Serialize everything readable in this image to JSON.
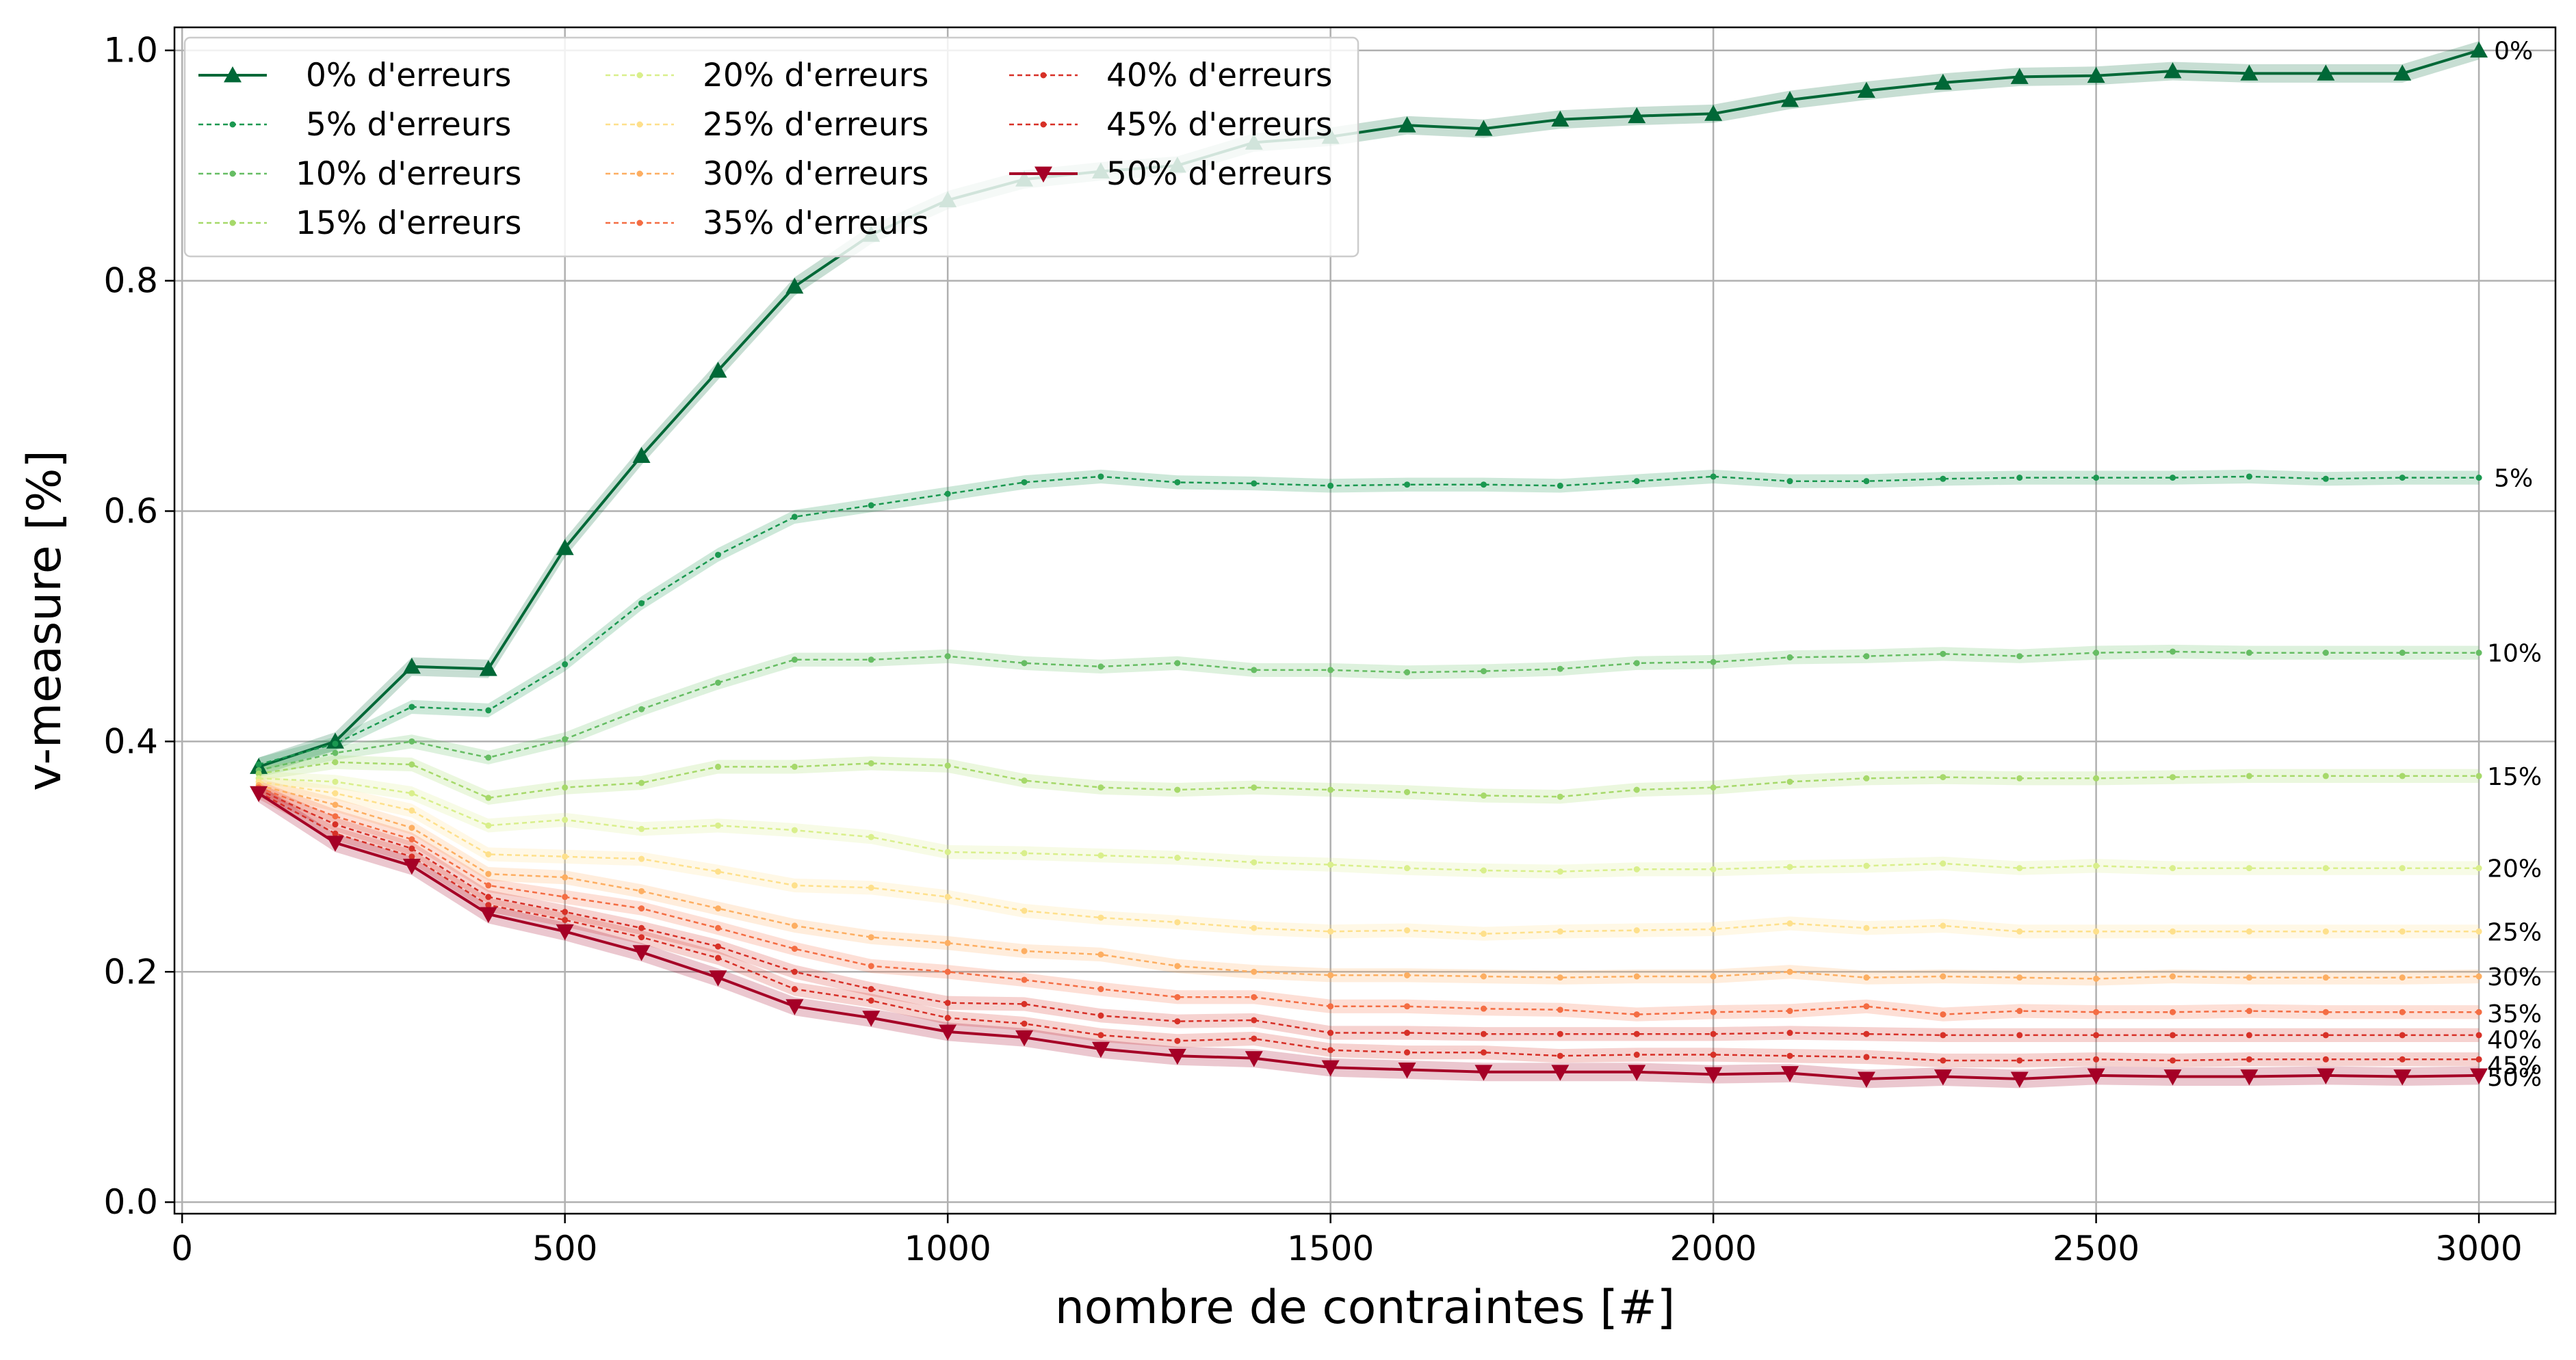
{
  "chart_data": {
    "type": "line",
    "xlabel": "nombre de contraintes [#]",
    "ylabel": "v-measure [%]",
    "xlim": [
      -10,
      3100
    ],
    "ylim": [
      -0.01,
      1.02
    ],
    "xticks": [
      0,
      500,
      1000,
      1500,
      2000,
      2500,
      3000
    ],
    "xtick_labels": [
      "0",
      "500",
      "1000",
      "1500",
      "2000",
      "2500",
      "3000"
    ],
    "yticks": [
      0.0,
      0.2,
      0.4,
      0.6,
      0.8,
      1.0
    ],
    "ytick_labels": [
      "0.0",
      "0.2",
      "0.4",
      "0.6",
      "0.8",
      "1.0"
    ],
    "grid": true,
    "legend_position": "top-left",
    "legend_columns": 3,
    "x": [
      100,
      200,
      300,
      400,
      500,
      600,
      700,
      800,
      900,
      1000,
      1100,
      1200,
      1300,
      1400,
      1500,
      1600,
      1700,
      1800,
      1900,
      2000,
      2100,
      2200,
      2300,
      2400,
      2500,
      2600,
      2700,
      2800,
      2900,
      3000
    ],
    "series": [
      {
        "name": " 0% d'erreurs",
        "end_label": "0%",
        "color": "#006837",
        "marker": "triangle-up",
        "line_style": "solid",
        "values": [
          0.378,
          0.4,
          0.465,
          0.463,
          0.568,
          0.648,
          0.722,
          0.795,
          0.84,
          0.87,
          0.888,
          0.895,
          0.9,
          0.92,
          0.925,
          0.935,
          0.932,
          0.94,
          0.943,
          0.945,
          0.957,
          0.965,
          0.972,
          0.977,
          0.978,
          0.982,
          0.98,
          0.98,
          0.98,
          1.0
        ]
      },
      {
        "name": " 5% d'erreurs",
        "end_label": "5%",
        "color": "#1a9850",
        "marker": "dot",
        "line_style": "dashed",
        "values": [
          0.38,
          0.398,
          0.43,
          0.427,
          0.467,
          0.52,
          0.562,
          0.595,
          0.605,
          0.615,
          0.625,
          0.63,
          0.625,
          0.624,
          0.622,
          0.623,
          0.623,
          0.622,
          0.626,
          0.63,
          0.626,
          0.626,
          0.628,
          0.629,
          0.629,
          0.629,
          0.63,
          0.628,
          0.629,
          0.629
        ]
      },
      {
        "name": "10% d'erreurs",
        "end_label": "10%",
        "color": "#66bd63",
        "marker": "dot",
        "line_style": "dashed",
        "values": [
          0.375,
          0.39,
          0.4,
          0.386,
          0.402,
          0.428,
          0.451,
          0.471,
          0.471,
          0.474,
          0.468,
          0.465,
          0.468,
          0.462,
          0.462,
          0.46,
          0.461,
          0.463,
          0.468,
          0.469,
          0.473,
          0.474,
          0.476,
          0.474,
          0.477,
          0.478,
          0.477,
          0.477,
          0.477,
          0.477
        ]
      },
      {
        "name": "15% d'erreurs",
        "end_label": "15%",
        "color": "#a6d96a",
        "marker": "dot",
        "line_style": "dashed",
        "values": [
          0.372,
          0.382,
          0.38,
          0.351,
          0.36,
          0.364,
          0.378,
          0.378,
          0.381,
          0.379,
          0.366,
          0.36,
          0.358,
          0.36,
          0.358,
          0.356,
          0.353,
          0.352,
          0.358,
          0.36,
          0.365,
          0.368,
          0.369,
          0.368,
          0.368,
          0.369,
          0.37,
          0.37,
          0.37,
          0.37
        ]
      },
      {
        "name": "20% d'erreurs",
        "end_label": "20%",
        "color": "#d9ef8b",
        "marker": "dot",
        "line_style": "dashed",
        "values": [
          0.368,
          0.365,
          0.355,
          0.327,
          0.332,
          0.324,
          0.327,
          0.323,
          0.317,
          0.304,
          0.303,
          0.301,
          0.299,
          0.295,
          0.293,
          0.29,
          0.288,
          0.287,
          0.289,
          0.289,
          0.291,
          0.292,
          0.294,
          0.29,
          0.292,
          0.29,
          0.29,
          0.29,
          0.29,
          0.29
        ]
      },
      {
        "name": "25% d'erreurs",
        "end_label": "25%",
        "color": "#fee08b",
        "marker": "dot",
        "line_style": "dashed",
        "values": [
          0.365,
          0.355,
          0.34,
          0.302,
          0.3,
          0.298,
          0.287,
          0.275,
          0.273,
          0.265,
          0.253,
          0.247,
          0.243,
          0.238,
          0.235,
          0.236,
          0.233,
          0.235,
          0.236,
          0.237,
          0.242,
          0.238,
          0.24,
          0.235,
          0.235,
          0.235,
          0.235,
          0.235,
          0.235,
          0.235
        ]
      },
      {
        "name": "30% d'erreurs",
        "end_label": "30%",
        "color": "#fdae61",
        "marker": "dot",
        "line_style": "dashed",
        "values": [
          0.362,
          0.345,
          0.325,
          0.285,
          0.282,
          0.27,
          0.255,
          0.24,
          0.23,
          0.225,
          0.218,
          0.215,
          0.205,
          0.2,
          0.197,
          0.197,
          0.196,
          0.195,
          0.196,
          0.196,
          0.2,
          0.195,
          0.196,
          0.195,
          0.194,
          0.196,
          0.195,
          0.195,
          0.195,
          0.196
        ]
      },
      {
        "name": "35% d'erreurs",
        "end_label": "35%",
        "color": "#f46d43",
        "marker": "dot",
        "line_style": "dashed",
        "values": [
          0.36,
          0.335,
          0.315,
          0.275,
          0.265,
          0.255,
          0.238,
          0.22,
          0.205,
          0.2,
          0.193,
          0.185,
          0.178,
          0.178,
          0.17,
          0.17,
          0.168,
          0.167,
          0.163,
          0.165,
          0.166,
          0.17,
          0.163,
          0.166,
          0.165,
          0.165,
          0.166,
          0.165,
          0.165,
          0.165
        ]
      },
      {
        "name": "40% d'erreurs",
        "end_label": "40%",
        "color": "#d73027",
        "marker": "dot",
        "line_style": "dashed",
        "values": [
          0.358,
          0.328,
          0.307,
          0.265,
          0.252,
          0.238,
          0.222,
          0.2,
          0.185,
          0.173,
          0.172,
          0.162,
          0.157,
          0.158,
          0.147,
          0.147,
          0.146,
          0.146,
          0.146,
          0.146,
          0.147,
          0.146,
          0.145,
          0.145,
          0.145,
          0.145,
          0.145,
          0.145,
          0.145,
          0.145
        ]
      },
      {
        "name": "45% d'erreurs",
        "end_label": "45%",
        "color": "#d73027",
        "marker": "dot",
        "line_style": "dashed",
        "values": [
          0.356,
          0.32,
          0.3,
          0.258,
          0.245,
          0.23,
          0.212,
          0.185,
          0.175,
          0.16,
          0.155,
          0.145,
          0.14,
          0.142,
          0.132,
          0.13,
          0.13,
          0.127,
          0.128,
          0.128,
          0.127,
          0.126,
          0.123,
          0.123,
          0.124,
          0.123,
          0.124,
          0.124,
          0.124,
          0.124
        ]
      },
      {
        "name": "50% d'erreurs",
        "end_label": "50%",
        "color": "#a50026",
        "marker": "triangle-down",
        "line_style": "solid",
        "values": [
          0.355,
          0.312,
          0.292,
          0.25,
          0.235,
          0.217,
          0.195,
          0.17,
          0.16,
          0.148,
          0.143,
          0.133,
          0.127,
          0.125,
          0.117,
          0.115,
          0.113,
          0.113,
          0.113,
          0.111,
          0.112,
          0.107,
          0.109,
          0.107,
          0.11,
          0.109,
          0.109,
          0.11,
          0.109,
          0.11
        ]
      }
    ]
  }
}
